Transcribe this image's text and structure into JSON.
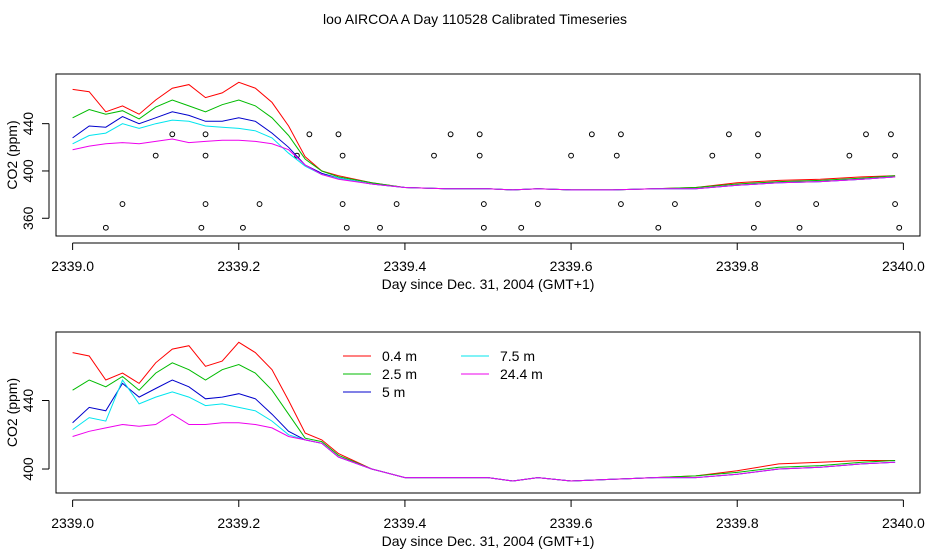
{
  "title": "loo AIRCOA A  Day 110528  Calibrated Timeseries",
  "colors": {
    "0.4 m": "#ff0000",
    "2.5 m": "#00bb00",
    "5 m": "#0000cc",
    "7.5 m": "#00e5ee",
    "24.4 m": "#ee00ee",
    "points": "#000000"
  },
  "chart_data": [
    {
      "type": "line",
      "xlabel": "Day since Dec. 31, 2004 (GMT+1)",
      "ylabel": "CO2 (ppm)",
      "xlim": [
        2338.98,
        2340.02
      ],
      "ylim": [
        345,
        482
      ],
      "x_ticks": [
        2339.0,
        2339.2,
        2339.4,
        2339.6,
        2339.8,
        2340.0
      ],
      "x_tick_labels": [
        "2339.0",
        "2339.2",
        "2339.4",
        "2339.6",
        "2339.8",
        "2340.0"
      ],
      "y_ticks": [
        360,
        400,
        440
      ],
      "y_tick_labels": [
        "360",
        "400",
        "440"
      ],
      "grid": false,
      "legend": null,
      "series": [
        {
          "key": "0.4 m",
          "x": [
            2339.0,
            2339.02,
            2339.04,
            2339.06,
            2339.08,
            2339.1,
            2339.12,
            2339.14,
            2339.16,
            2339.18,
            2339.2,
            2339.22,
            2339.24,
            2339.26,
            2339.28,
            2339.3,
            2339.32,
            2339.36,
            2339.4,
            2339.45,
            2339.5,
            2339.53,
            2339.56,
            2339.6,
            2339.65,
            2339.7,
            2339.75,
            2339.8,
            2339.85,
            2339.9,
            2339.95,
            2339.99
          ],
          "y": [
            469,
            467,
            450,
            455,
            448,
            460,
            470,
            473,
            462,
            466,
            475,
            470,
            458,
            438,
            412,
            400,
            396,
            390,
            386,
            385,
            385,
            384,
            385,
            384,
            384,
            385,
            386,
            390,
            392,
            393,
            395,
            396
          ]
        },
        {
          "key": "2.5 m",
          "x": [
            2339.0,
            2339.02,
            2339.04,
            2339.06,
            2339.08,
            2339.1,
            2339.12,
            2339.14,
            2339.16,
            2339.18,
            2339.2,
            2339.22,
            2339.24,
            2339.26,
            2339.28,
            2339.3,
            2339.32,
            2339.36,
            2339.4,
            2339.45,
            2339.5,
            2339.53,
            2339.56,
            2339.6,
            2339.65,
            2339.7,
            2339.75,
            2339.8,
            2339.85,
            2339.9,
            2339.95,
            2339.99
          ],
          "y": [
            445,
            452,
            448,
            451,
            444,
            454,
            460,
            455,
            450,
            456,
            460,
            455,
            445,
            430,
            410,
            400,
            395,
            390,
            386,
            385,
            385,
            384,
            385,
            384,
            384,
            385,
            386,
            389,
            391,
            392,
            394,
            396
          ]
        },
        {
          "key": "5 m",
          "x": [
            2339.0,
            2339.02,
            2339.04,
            2339.06,
            2339.08,
            2339.1,
            2339.12,
            2339.14,
            2339.16,
            2339.18,
            2339.2,
            2339.22,
            2339.24,
            2339.26,
            2339.28,
            2339.3,
            2339.32,
            2339.36,
            2339.4,
            2339.45,
            2339.5,
            2339.53,
            2339.56,
            2339.6,
            2339.65,
            2339.7,
            2339.75,
            2339.8,
            2339.85,
            2339.9,
            2339.95,
            2339.99
          ],
          "y": [
            428,
            438,
            437,
            446,
            440,
            445,
            450,
            447,
            442,
            442,
            445,
            442,
            432,
            420,
            405,
            398,
            394,
            389,
            386,
            385,
            385,
            384,
            385,
            384,
            384,
            385,
            385,
            388,
            390,
            391,
            393,
            395
          ]
        },
        {
          "key": "7.5 m",
          "x": [
            2339.0,
            2339.02,
            2339.04,
            2339.06,
            2339.08,
            2339.1,
            2339.12,
            2339.14,
            2339.16,
            2339.18,
            2339.2,
            2339.22,
            2339.24,
            2339.26,
            2339.28,
            2339.3,
            2339.32,
            2339.36,
            2339.4,
            2339.45,
            2339.5,
            2339.53,
            2339.56,
            2339.6,
            2339.65,
            2339.7,
            2339.75,
            2339.8,
            2339.85,
            2339.9,
            2339.95,
            2339.99
          ],
          "y": [
            423,
            430,
            432,
            440,
            436,
            440,
            443,
            442,
            438,
            437,
            436,
            434,
            428,
            415,
            404,
            397,
            394,
            389,
            386,
            385,
            385,
            384,
            385,
            384,
            384,
            385,
            385,
            388,
            390,
            391,
            393,
            395
          ]
        },
        {
          "key": "24.4 m",
          "x": [
            2339.0,
            2339.02,
            2339.04,
            2339.06,
            2339.08,
            2339.1,
            2339.12,
            2339.14,
            2339.16,
            2339.18,
            2339.2,
            2339.22,
            2339.24,
            2339.26,
            2339.28,
            2339.3,
            2339.32,
            2339.36,
            2339.4,
            2339.45,
            2339.5,
            2339.53,
            2339.56,
            2339.6,
            2339.65,
            2339.7,
            2339.75,
            2339.8,
            2339.85,
            2339.9,
            2339.95,
            2339.99
          ],
          "y": [
            418,
            421,
            423,
            424,
            423,
            425,
            427,
            424,
            425,
            426,
            426,
            425,
            423,
            418,
            405,
            397,
            393,
            389,
            386,
            385,
            385,
            384,
            385,
            384,
            384,
            385,
            385,
            388,
            390,
            391,
            393,
            395
          ]
        }
      ],
      "points": {
        "x": [
          2339.04,
          2339.06,
          2339.1,
          2339.12,
          2339.155,
          2339.16,
          2339.16,
          2339.16,
          2339.205,
          2339.225,
          2339.27,
          2339.285,
          2339.32,
          2339.325,
          2339.325,
          2339.33,
          2339.37,
          2339.39,
          2339.435,
          2339.455,
          2339.49,
          2339.49,
          2339.495,
          2339.495,
          2339.54,
          2339.56,
          2339.6,
          2339.625,
          2339.655,
          2339.66,
          2339.66,
          2339.705,
          2339.725,
          2339.77,
          2339.79,
          2339.82,
          2339.825,
          2339.825,
          2339.825,
          2339.875,
          2339.895,
          2339.935,
          2339.955,
          2339.985,
          2339.99,
          2339.99,
          2339.995
        ],
        "y": [
          352,
          372,
          413,
          431,
          352,
          372,
          413,
          431,
          352,
          372,
          413,
          431,
          431,
          413,
          372,
          352,
          352,
          372,
          413,
          431,
          413,
          431,
          372,
          352,
          352,
          372,
          413,
          431,
          413,
          431,
          372,
          352,
          372,
          413,
          431,
          352,
          372,
          413,
          431,
          352,
          372,
          413,
          431,
          431,
          413,
          372,
          352
        ]
      }
    },
    {
      "type": "line",
      "xlabel": "Day since Dec. 31, 2004 (GMT+1)",
      "ylabel": "CO2 (ppm)",
      "xlim": [
        2338.98,
        2340.02
      ],
      "ylim": [
        386,
        480
      ],
      "x_ticks": [
        2339.0,
        2339.2,
        2339.4,
        2339.6,
        2339.8,
        2340.0
      ],
      "x_tick_labels": [
        "2339.0",
        "2339.2",
        "2339.4",
        "2339.6",
        "2339.8",
        "2340.0"
      ],
      "y_ticks": [
        400,
        440
      ],
      "y_tick_labels": [
        "400",
        "440"
      ],
      "grid": false,
      "legend": {
        "placement": "top-center",
        "entries": [
          "0.4 m",
          "2.5 m",
          "5 m",
          "7.5 m",
          "24.4 m"
        ]
      },
      "series": [
        {
          "key": "0.4 m",
          "x": [
            2339.0,
            2339.02,
            2339.04,
            2339.06,
            2339.08,
            2339.1,
            2339.12,
            2339.14,
            2339.16,
            2339.18,
            2339.2,
            2339.22,
            2339.24,
            2339.26,
            2339.28,
            2339.3,
            2339.32,
            2339.36,
            2339.4,
            2339.45,
            2339.5,
            2339.53,
            2339.56,
            2339.6,
            2339.65,
            2339.7,
            2339.75,
            2339.8,
            2339.85,
            2339.9,
            2339.95,
            2339.99
          ],
          "y": [
            468,
            466,
            452,
            456,
            450,
            462,
            470,
            472,
            460,
            463,
            474,
            468,
            458,
            440,
            421,
            417,
            409,
            400,
            395,
            395,
            395,
            393,
            395,
            393,
            394,
            395,
            396,
            399,
            403,
            404,
            405,
            405
          ]
        },
        {
          "key": "2.5 m",
          "x": [
            2339.0,
            2339.02,
            2339.04,
            2339.06,
            2339.08,
            2339.1,
            2339.12,
            2339.14,
            2339.16,
            2339.18,
            2339.2,
            2339.22,
            2339.24,
            2339.26,
            2339.28,
            2339.3,
            2339.32,
            2339.36,
            2339.4,
            2339.45,
            2339.5,
            2339.53,
            2339.56,
            2339.6,
            2339.65,
            2339.7,
            2339.75,
            2339.8,
            2339.85,
            2339.9,
            2339.95,
            2339.99
          ],
          "y": [
            446,
            452,
            448,
            454,
            446,
            456,
            462,
            458,
            452,
            458,
            461,
            456,
            446,
            432,
            418,
            416,
            408,
            400,
            395,
            395,
            395,
            393,
            395,
            393,
            394,
            395,
            396,
            398,
            401,
            402,
            404,
            405
          ]
        },
        {
          "key": "5 m",
          "x": [
            2339.0,
            2339.02,
            2339.04,
            2339.06,
            2339.08,
            2339.1,
            2339.12,
            2339.14,
            2339.16,
            2339.18,
            2339.2,
            2339.22,
            2339.24,
            2339.26,
            2339.28,
            2339.3,
            2339.32,
            2339.36,
            2339.4,
            2339.45,
            2339.5,
            2339.53,
            2339.56,
            2339.6,
            2339.65,
            2339.7,
            2339.75,
            2339.8,
            2339.85,
            2339.9,
            2339.95,
            2339.99
          ],
          "y": [
            427,
            436,
            434,
            450,
            442,
            447,
            452,
            448,
            441,
            442,
            444,
            441,
            432,
            422,
            417,
            415,
            407,
            400,
            395,
            395,
            395,
            393,
            395,
            393,
            394,
            395,
            395,
            397,
            400,
            401,
            403,
            404
          ]
        },
        {
          "key": "7.5 m",
          "x": [
            2339.0,
            2339.02,
            2339.04,
            2339.06,
            2339.08,
            2339.1,
            2339.12,
            2339.14,
            2339.16,
            2339.18,
            2339.2,
            2339.22,
            2339.24,
            2339.26,
            2339.28,
            2339.3,
            2339.32,
            2339.36,
            2339.4,
            2339.45,
            2339.5,
            2339.53,
            2339.56,
            2339.6,
            2339.65,
            2339.7,
            2339.75,
            2339.8,
            2339.85,
            2339.9,
            2339.95,
            2339.99
          ],
          "y": [
            423,
            430,
            428,
            452,
            438,
            442,
            445,
            442,
            437,
            438,
            436,
            434,
            428,
            420,
            417,
            415,
            407,
            400,
            395,
            395,
            395,
            393,
            395,
            393,
            394,
            395,
            395,
            397,
            400,
            401,
            403,
            404
          ]
        },
        {
          "key": "24.4 m",
          "x": [
            2339.0,
            2339.02,
            2339.04,
            2339.06,
            2339.08,
            2339.1,
            2339.12,
            2339.14,
            2339.16,
            2339.18,
            2339.2,
            2339.22,
            2339.24,
            2339.26,
            2339.28,
            2339.3,
            2339.32,
            2339.36,
            2339.4,
            2339.45,
            2339.5,
            2339.53,
            2339.56,
            2339.6,
            2339.65,
            2339.7,
            2339.75,
            2339.8,
            2339.85,
            2339.9,
            2339.95,
            2339.99
          ],
          "y": [
            419,
            422,
            424,
            426,
            425,
            426,
            432,
            426,
            426,
            427,
            427,
            426,
            424,
            419,
            417,
            415,
            407,
            400,
            395,
            395,
            395,
            393,
            395,
            393,
            394,
            395,
            395,
            397,
            400,
            401,
            403,
            404
          ]
        }
      ]
    }
  ]
}
